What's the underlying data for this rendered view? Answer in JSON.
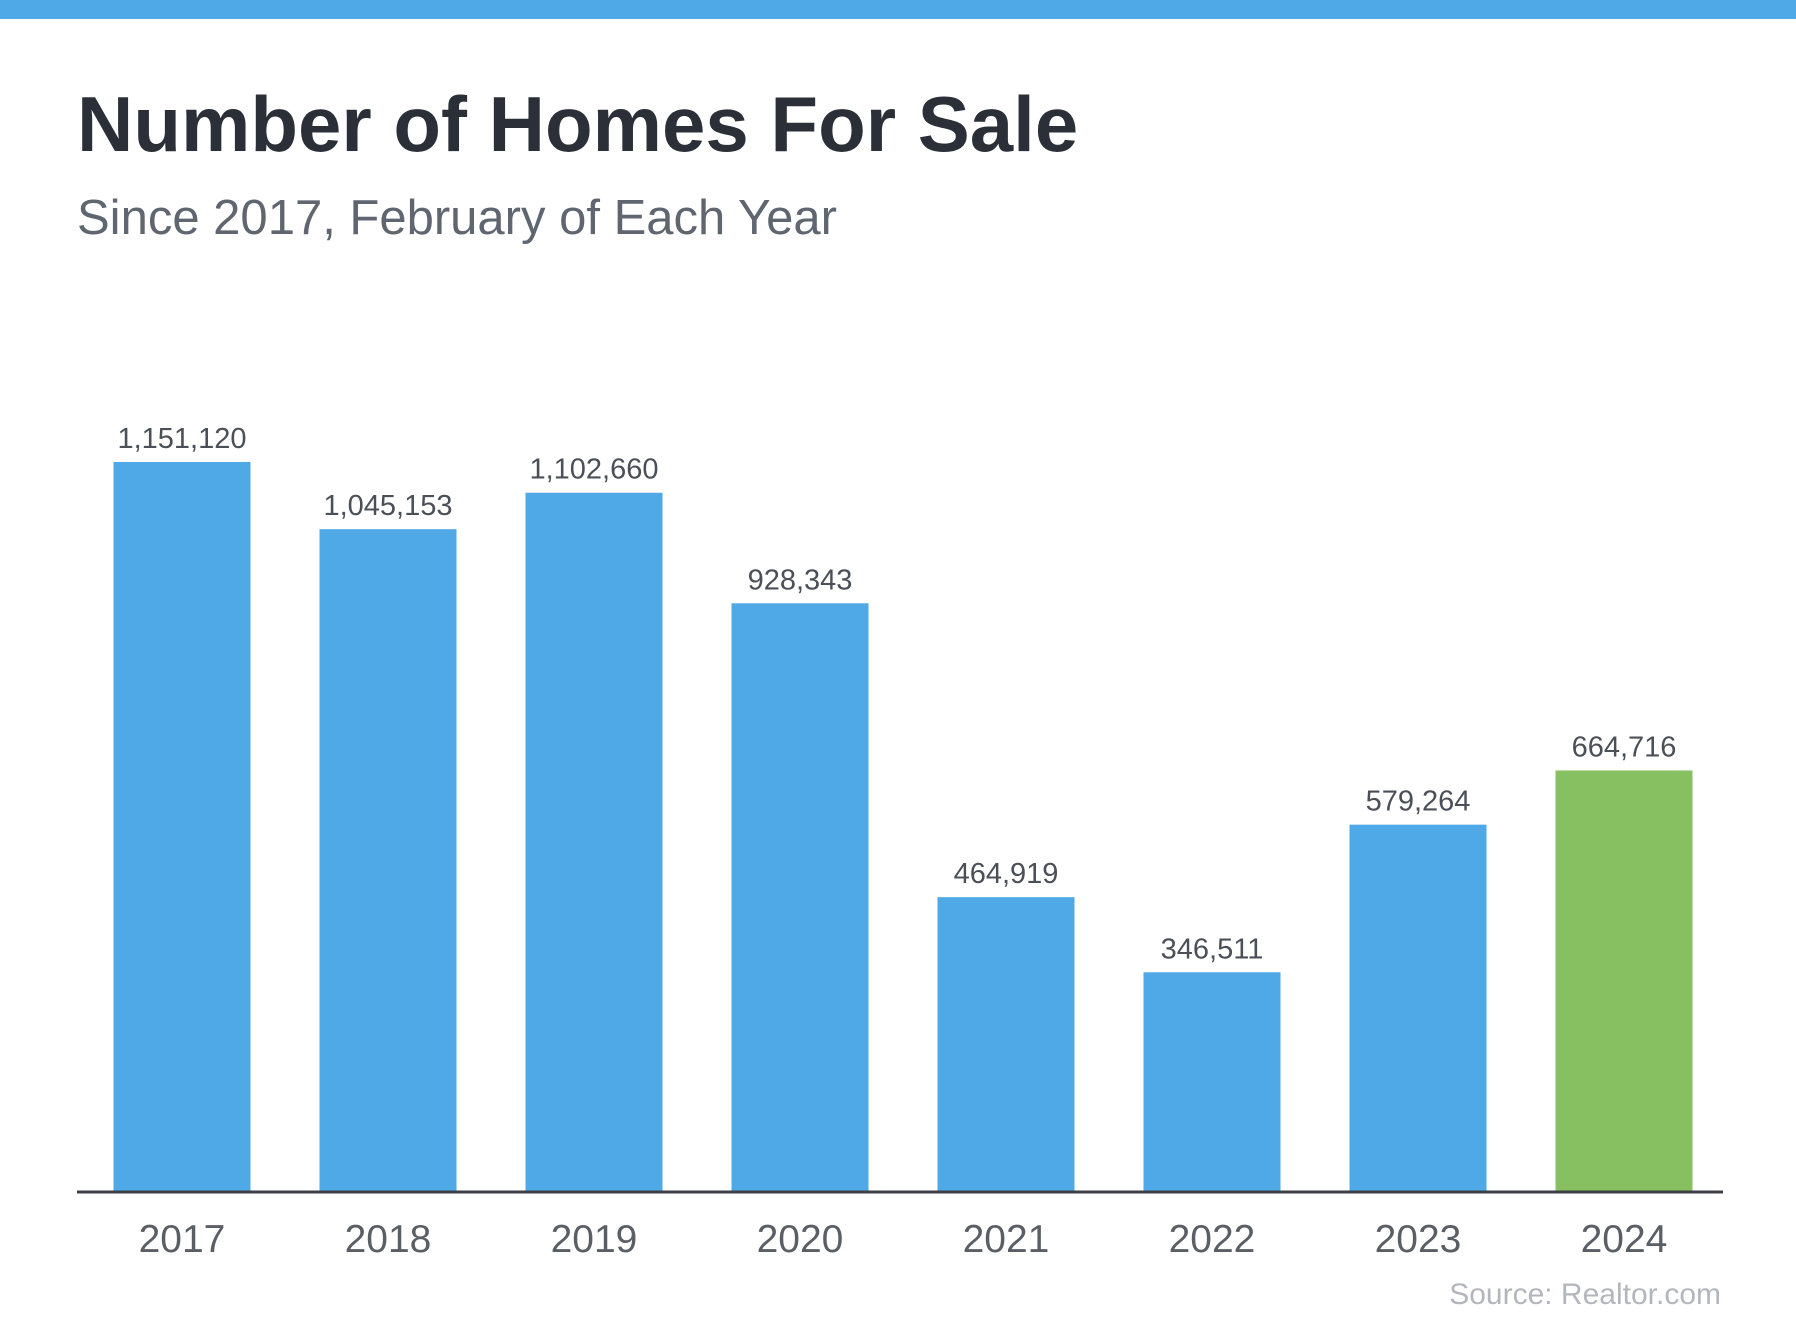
{
  "colors": {
    "top_bar": "#4fa9e6",
    "bar_default": "#4fa9e6",
    "bar_highlight": "#86c060",
    "baseline": "#3c3f44",
    "title": "#2b3038",
    "subtitle": "#5f6670",
    "value_label": "#4b5058",
    "tick_label": "#5a5f66",
    "source": "#b3b7bd"
  },
  "chart_data": {
    "type": "bar",
    "title": "Number of Homes For Sale",
    "subtitle": "Since 2017, February of Each Year",
    "xlabel": "",
    "ylabel": "",
    "categories": [
      "2017",
      "2018",
      "2019",
      "2020",
      "2021",
      "2022",
      "2023",
      "2024"
    ],
    "values": [
      1151120,
      1045153,
      1102660,
      928343,
      464919,
      346511,
      579264,
      664716
    ],
    "value_labels": [
      "1,151,120",
      "1,045,153",
      "1,102,660",
      "928,343",
      "464,919",
      "346,511",
      "579,264",
      "664,716"
    ],
    "highlight_index": 7,
    "ylim": [
      0,
      1151120
    ],
    "grid": false,
    "legend": "none",
    "source": "Source: Realtor.com"
  }
}
